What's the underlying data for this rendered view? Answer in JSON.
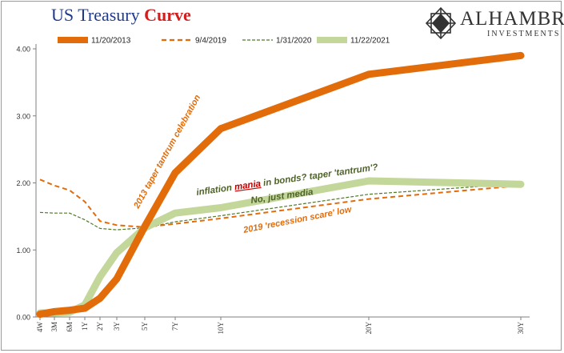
{
  "header": {
    "title_main": "US Treasury",
    "title_accent": "Curve",
    "logo_name": "ALHAMBRA",
    "logo_sub": "INVESTMENTS",
    "logo_icon": "geometric-star-icon"
  },
  "colors": {
    "s2013": "#e36c0a",
    "s2019": "#e36c0a",
    "s2020": "#4f7a28",
    "s2021": "#c4d79b",
    "title_blue": "#1f3a8a",
    "title_red": "#d11f1f",
    "ann_orange": "#e36c0a",
    "ann_green": "#4f6228",
    "ann_red": "#c00000"
  },
  "chart_data": {
    "type": "line",
    "x_unit": "years to maturity",
    "x_maturities_years": [
      0.077,
      0.25,
      0.5,
      1,
      2,
      3,
      5,
      7,
      10,
      20,
      30
    ],
    "categories": [
      "4W",
      "3M",
      "6M",
      "1Y",
      "2Y",
      "3Y",
      "5Y",
      "7Y",
      "10Y",
      "20Y",
      "30Y"
    ],
    "ylim": [
      0,
      4
    ],
    "yticks": [
      "0.00",
      "1.00",
      "2.00",
      "3.00",
      "4.00"
    ],
    "grid": false,
    "legend_position": "top",
    "series": [
      {
        "name": "11/20/2013",
        "style": "thick-solid",
        "values": [
          0.04,
          0.08,
          0.1,
          0.13,
          0.28,
          0.57,
          1.35,
          2.15,
          2.81,
          3.62,
          3.9
        ]
      },
      {
        "name": "9/4/2019",
        "style": "dashed",
        "values": [
          2.05,
          1.96,
          1.89,
          1.72,
          1.43,
          1.37,
          1.34,
          1.39,
          1.47,
          1.76,
          1.96
        ]
      },
      {
        "name": "1/31/2020",
        "style": "thin-dashed",
        "values": [
          1.56,
          1.55,
          1.55,
          1.45,
          1.32,
          1.3,
          1.33,
          1.42,
          1.51,
          1.83,
          1.99
        ]
      },
      {
        "name": "11/22/2021",
        "style": "thick-solid",
        "values": [
          0.06,
          0.06,
          0.07,
          0.18,
          0.6,
          0.96,
          1.33,
          1.55,
          1.63,
          2.03,
          1.98
        ]
      }
    ],
    "annotations": {
      "a2013": "2013 taper tantrum celebration",
      "a_inflation_1": "inflation",
      "a_mania": "mania",
      "a_inflation_2": "in bonds? taper 'tantrum'?",
      "a_nojust": "No, just media",
      "a2019": "2019 'recession scare' low"
    }
  }
}
